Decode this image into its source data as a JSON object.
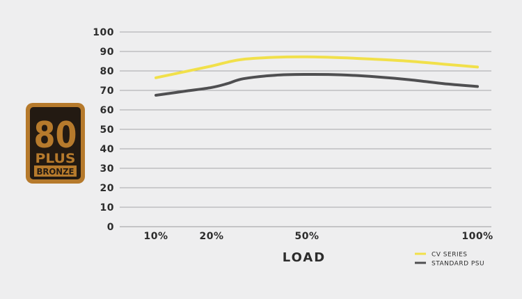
{
  "badge": {
    "line1": "80",
    "line2": "PLUS",
    "line3": "BRONZE",
    "colors": {
      "gold": "#b67a2c",
      "dark": "#231a12"
    }
  },
  "chart_data": {
    "type": "line",
    "xlabel": "LOAD",
    "ylabel": "",
    "title": "",
    "ylim": [
      0,
      100
    ],
    "yticks": [
      0,
      10,
      20,
      30,
      40,
      50,
      60,
      70,
      80,
      90,
      100
    ],
    "x_ticks": [
      {
        "value": 10,
        "label": "10%"
      },
      {
        "value": 20,
        "label": "20%"
      },
      {
        "value": 50,
        "label": "50%"
      },
      {
        "value": 100,
        "label": "100%"
      }
    ],
    "xlim": [
      0,
      100
    ],
    "grid": true,
    "legend_position": "bottom-right",
    "series": [
      {
        "name": "CV SERIES",
        "color": "#f1e04a",
        "x": [
          10,
          15,
          20,
          25,
          30,
          40,
          50,
          60,
          70,
          80,
          90,
          100
        ],
        "y": [
          76.5,
          79.5,
          82.5,
          84.5,
          86,
          87,
          87.2,
          86.8,
          86,
          85,
          83.5,
          82
        ]
      },
      {
        "name": "STANDARD PSU",
        "color": "#4f4f51",
        "x": [
          10,
          15,
          20,
          25,
          30,
          40,
          50,
          60,
          70,
          80,
          90,
          100
        ],
        "y": [
          67.5,
          69.5,
          71.5,
          73.5,
          76,
          77.8,
          78.2,
          78,
          77,
          75.5,
          73.5,
          72
        ]
      }
    ]
  }
}
